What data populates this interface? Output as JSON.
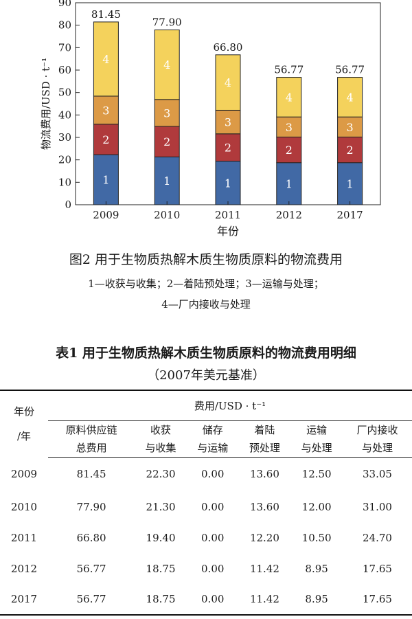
{
  "figure": {
    "caption": "图2 用于生物质热解木质生物质原料的物流费用",
    "legend_line1": "1—收获与收集；2—着陆预处理；3—运输与处理；",
    "legend_line2": "4—厂内接收与处理"
  },
  "chart_data": {
    "type": "bar",
    "stacked": true,
    "categories": [
      "2009",
      "2010",
      "2011",
      "2012",
      "2017"
    ],
    "series": [
      {
        "name": "1",
        "values": [
          22.3,
          21.3,
          19.4,
          18.75,
          18.75
        ],
        "color": "#4169a5"
      },
      {
        "name": "2",
        "values": [
          13.6,
          13.6,
          12.2,
          11.42,
          11.42
        ],
        "color": "#b03a3c"
      },
      {
        "name": "3",
        "values": [
          12.5,
          12.0,
          10.5,
          8.95,
          8.95
        ],
        "color": "#dc9a46"
      },
      {
        "name": "4",
        "values": [
          33.05,
          31.0,
          24.7,
          17.65,
          17.65
        ],
        "color": "#f4d25c"
      }
    ],
    "totals": [
      "81.45",
      "77.90",
      "66.80",
      "56.77",
      "56.77"
    ],
    "xlabel": "年份",
    "ylabel": "物流费用/USD · t⁻¹",
    "ylim": [
      0,
      90
    ],
    "yticks": [
      0,
      10,
      20,
      30,
      40,
      50,
      60,
      70,
      80,
      90
    ],
    "grid": false
  },
  "table": {
    "title": "表1 用于生物质热解木质生物质原料的物流费用明细",
    "subtitle": "（2007年美元基准）",
    "year_header_1": "年份",
    "year_header_2": "/年",
    "group_header": "费用/USD · t⁻¹",
    "columns": [
      [
        "原料供应链",
        "总费用"
      ],
      [
        "收获",
        "与收集"
      ],
      [
        "储存",
        "与运输"
      ],
      [
        "着陆",
        "预处理"
      ],
      [
        "运输",
        "与处理"
      ],
      [
        "厂内接收",
        "与处理"
      ]
    ],
    "rows": [
      [
        "2009",
        "81.45",
        "22.30",
        "0.00",
        "13.60",
        "12.50",
        "33.05"
      ],
      [
        "2010",
        "77.90",
        "21.30",
        "0.00",
        "13.60",
        "12.00",
        "31.00"
      ],
      [
        "2011",
        "66.80",
        "19.40",
        "0.00",
        "12.20",
        "10.50",
        "24.70"
      ],
      [
        "2012",
        "56.77",
        "18.75",
        "0.00",
        "11.42",
        "8.95",
        "17.65"
      ],
      [
        "2017",
        "56.77",
        "18.75",
        "0.00",
        "11.42",
        "8.95",
        "17.65"
      ]
    ]
  }
}
